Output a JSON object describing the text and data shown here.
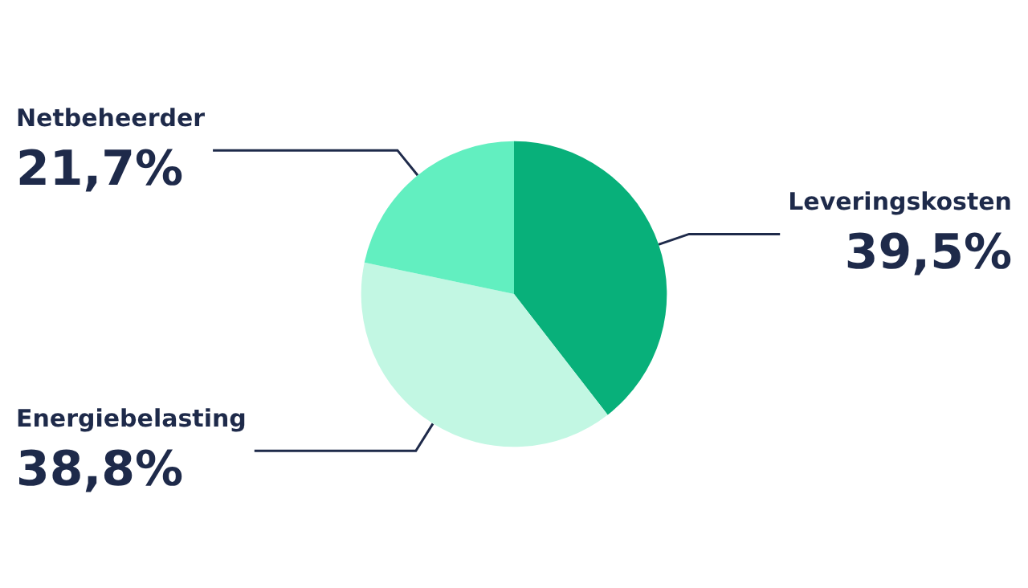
{
  "chart_data": {
    "type": "pie",
    "categories": [
      "Leveringskosten",
      "Energiebelasting",
      "Netbeheerder"
    ],
    "values": [
      39.5,
      38.8,
      21.7
    ],
    "colors": [
      "#08b07a",
      "#c2f7e3",
      "#62efc0"
    ],
    "value_labels": [
      "39,5%",
      "38,8%",
      "21,7%"
    ],
    "legend": false
  }
}
